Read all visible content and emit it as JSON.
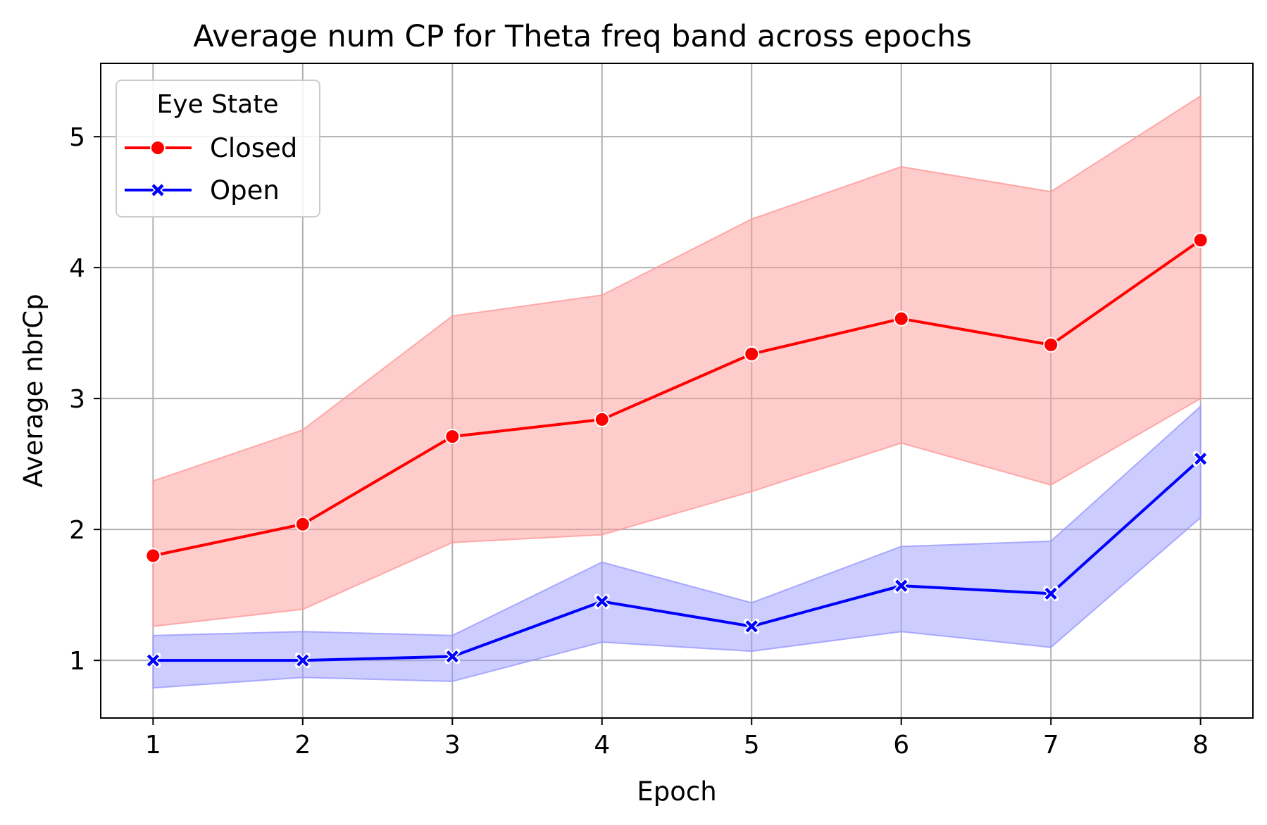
{
  "chart_data": {
    "type": "line",
    "title": "Average num CP for Theta freq band across epochs",
    "xlabel": "Epoch",
    "ylabel": "Average nbrCp",
    "x": [
      1,
      2,
      3,
      4,
      5,
      6,
      7,
      8
    ],
    "xlim": [
      0.65,
      8.35
    ],
    "ylim": [
      0.56,
      5.56
    ],
    "yticks": [
      1,
      2,
      3,
      4,
      5
    ],
    "grid": true,
    "legend": {
      "title": "Eye State",
      "position": "top-left"
    },
    "series": [
      {
        "name": "Closed",
        "color": "#ff0000",
        "band_color": "#ff9999",
        "marker": "circle",
        "values": [
          1.8,
          2.04,
          2.71,
          2.84,
          3.34,
          3.61,
          3.41,
          4.21
        ],
        "lower": [
          1.26,
          1.39,
          1.9,
          1.96,
          2.29,
          2.66,
          2.34,
          3.0
        ],
        "upper": [
          2.37,
          2.76,
          3.63,
          3.79,
          4.37,
          4.77,
          4.58,
          5.31
        ]
      },
      {
        "name": "Open",
        "color": "#0000ff",
        "band_color": "#9999ff",
        "marker": "x",
        "values": [
          1.0,
          1.0,
          1.03,
          1.45,
          1.26,
          1.57,
          1.51,
          2.54
        ],
        "lower": [
          0.79,
          0.87,
          0.84,
          1.14,
          1.07,
          1.22,
          1.1,
          2.09
        ],
        "upper": [
          1.19,
          1.22,
          1.19,
          1.75,
          1.44,
          1.87,
          1.91,
          2.94
        ]
      }
    ]
  }
}
